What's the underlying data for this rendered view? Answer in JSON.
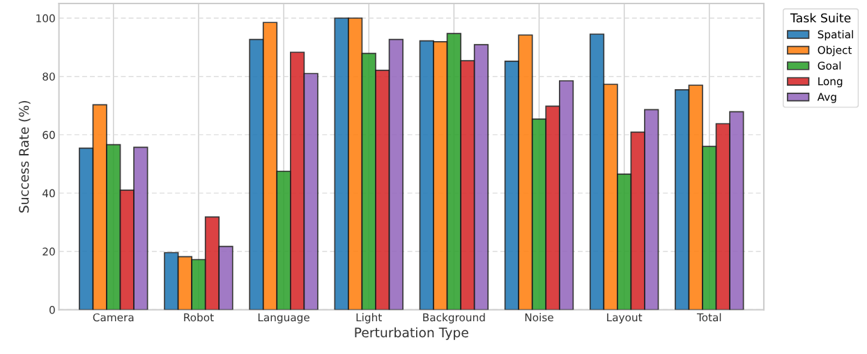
{
  "chart_data": {
    "type": "bar",
    "xlabel": "Perturbation Type",
    "ylabel": "Success Rate (%)",
    "legend_title": "Task Suite",
    "categories": [
      "Camera",
      "Robot",
      "Language",
      "Light",
      "Background",
      "Noise",
      "Layout",
      "Total"
    ],
    "series": [
      {
        "name": "Spatial",
        "color": "#1f77b4",
        "values": [
          55.4,
          19.6,
          92.7,
          100,
          92.2,
          85.2,
          94.5,
          75.4
        ]
      },
      {
        "name": "Object",
        "color": "#ff7f0e",
        "values": [
          70.3,
          18.2,
          98.5,
          100,
          91.9,
          94.2,
          77.3,
          77.0
        ]
      },
      {
        "name": "Goal",
        "color": "#2ca02c",
        "values": [
          56.6,
          17.2,
          47.5,
          87.9,
          94.7,
          65.4,
          46.5,
          56.0
        ]
      },
      {
        "name": "Long",
        "color": "#d62728",
        "values": [
          41.0,
          31.8,
          88.3,
          82.1,
          85.4,
          69.8,
          60.9,
          63.8
        ]
      },
      {
        "name": "Avg",
        "color": "#9467bd",
        "values": [
          55.7,
          21.7,
          81.0,
          92.7,
          90.9,
          78.5,
          68.6,
          67.9
        ]
      }
    ],
    "ylim": [
      0,
      105
    ],
    "yticks": [
      0,
      20,
      40,
      60,
      80,
      100
    ],
    "grid": true,
    "legend": "top right"
  }
}
